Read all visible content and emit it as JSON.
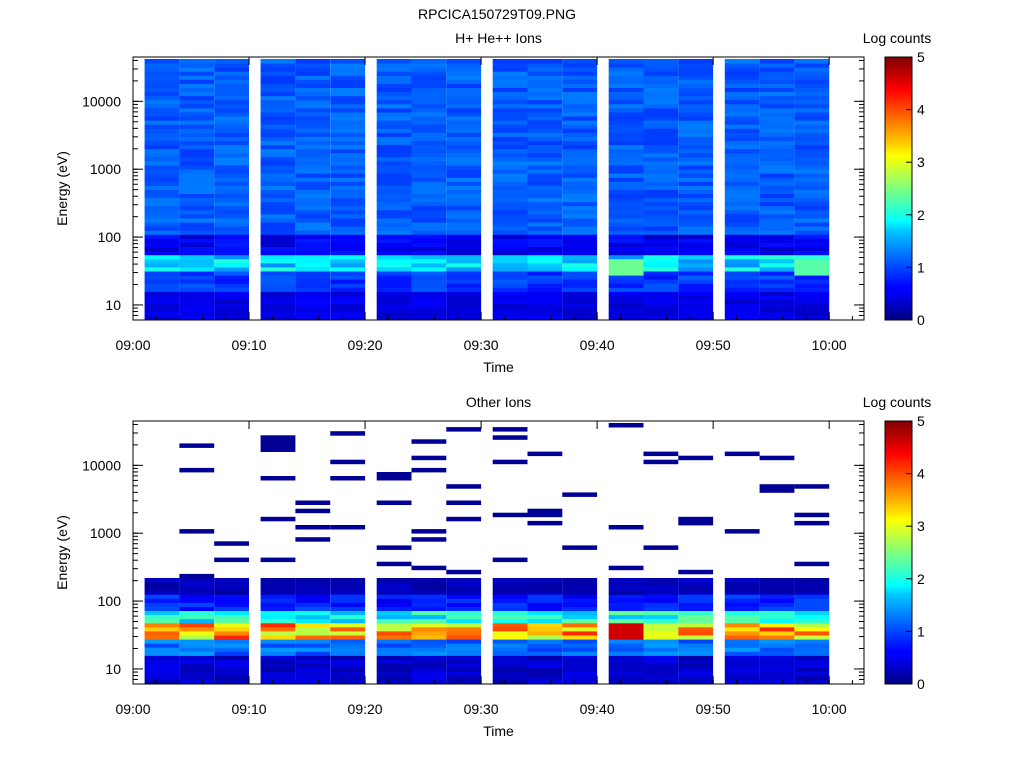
{
  "page": {
    "title": "RPCICA150729T09.PNG"
  },
  "chart_data": [
    {
      "type": "heatmap",
      "title": "H+ He++ Ions",
      "xlabel": "Time",
      "ylabel": "Energy (eV)",
      "x_ticks": [
        "09:00",
        "09:10",
        "09:20",
        "09:30",
        "09:40",
        "09:50",
        "10:00"
      ],
      "y_ticks": [
        "10",
        "100",
        "1000",
        "10000"
      ],
      "y_scale": "log",
      "ylim": [
        6,
        45000
      ],
      "xlim": [
        "09:00",
        "10:03"
      ],
      "colorbar": {
        "label": "Log counts",
        "ticks": [
          "0",
          "1",
          "2",
          "3",
          "4",
          "5"
        ],
        "range": [
          0,
          5
        ]
      },
      "time_bins": [
        "09:02",
        "09:05",
        "09:08",
        "09:12",
        "09:15",
        "09:18",
        "09:22",
        "09:25",
        "09:28",
        "09:32",
        "09:35",
        "09:38",
        "09:42",
        "09:45",
        "09:48",
        "09:52",
        "09:55",
        "09:58"
      ],
      "energy_range": [
        6,
        42000
      ],
      "levels_by_energy": {
        "10": 0.4,
        "20": 0.7,
        "40": 1.9,
        "100": 0.6,
        "1000": 1.0,
        "10000": 1.0
      },
      "highlights": [
        {
          "time": "09:42",
          "energy": 45,
          "value": 2.4
        },
        {
          "time": "09:58",
          "energy": 45,
          "value": 2.3
        }
      ]
    },
    {
      "type": "heatmap",
      "title": "Other Ions",
      "xlabel": "Time",
      "ylabel": "Energy (eV)",
      "x_ticks": [
        "09:00",
        "09:10",
        "09:20",
        "09:30",
        "09:40",
        "09:50",
        "10:00"
      ],
      "y_ticks": [
        "10",
        "100",
        "1000",
        "10000"
      ],
      "y_scale": "log",
      "ylim": [
        6,
        45000
      ],
      "xlim": [
        "09:00",
        "10:03"
      ],
      "colorbar": {
        "label": "Log counts",
        "ticks": [
          "0",
          "1",
          "2",
          "3",
          "4",
          "5"
        ],
        "range": [
          0,
          5
        ]
      },
      "time_bins": [
        "09:02",
        "09:05",
        "09:08",
        "09:12",
        "09:15",
        "09:18",
        "09:22",
        "09:25",
        "09:28",
        "09:32",
        "09:35",
        "09:38",
        "09:42",
        "09:45",
        "09:48",
        "09:52",
        "09:55",
        "09:58"
      ],
      "energy_range": [
        6,
        42000
      ],
      "levels_by_energy": {
        "10": 0.3,
        "25": 1.0,
        "40": 3.5,
        "60": 2.0,
        "100": 0.6,
        "200": 0.2,
        "above_200": "sparse 0.1"
      },
      "highlights": [
        {
          "time": "09:42",
          "energy": 45,
          "value": 4.6
        }
      ]
    }
  ]
}
